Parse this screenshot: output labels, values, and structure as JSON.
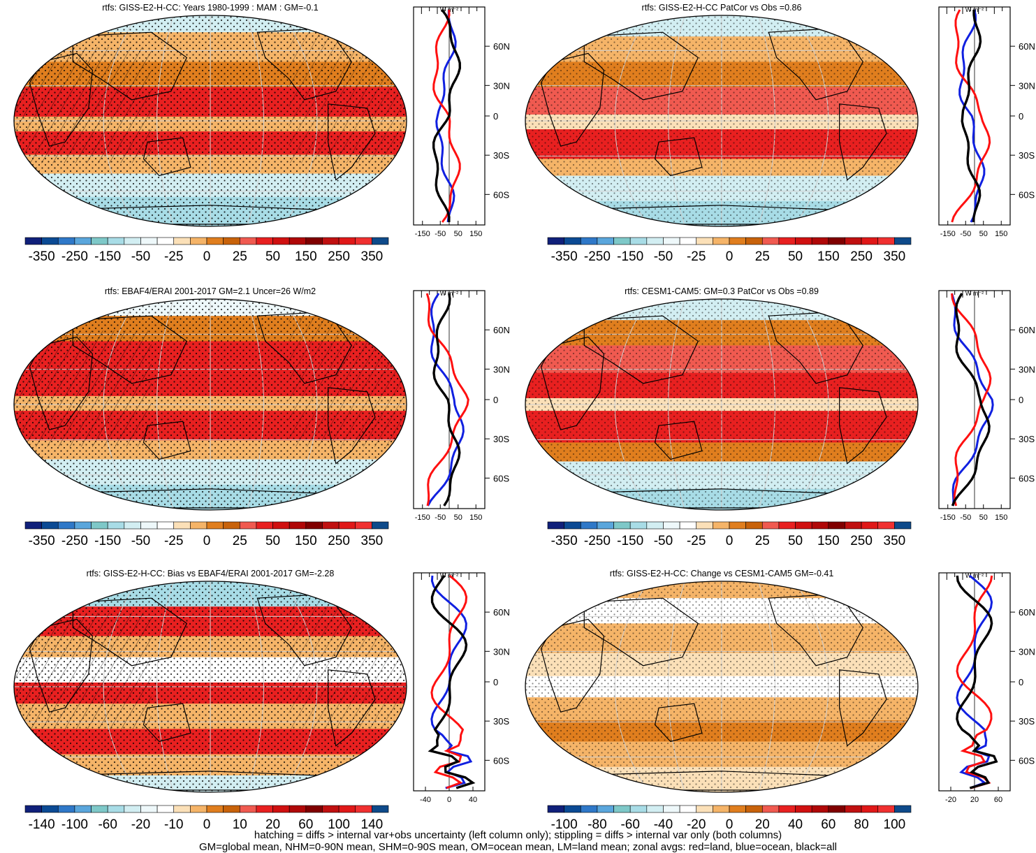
{
  "panels": [
    {
      "title": "rtfs: GISS-E2-H-CC: Years 1980-1999 : MAM : GM=-0.1",
      "colorbar_labels": [
        "-350",
        "-250",
        "-150",
        "-50",
        "-25",
        "0",
        "25",
        "50",
        "150",
        "250",
        "350"
      ],
      "profile_xticks": [
        "-150",
        "-50",
        "50",
        "150"
      ],
      "profile_units": "W m⁻²",
      "profile_lat_labels": [
        "60N",
        "30N",
        "0",
        "30S",
        "60S"
      ]
    },
    {
      "title": "rtfs: GISS-E2-H-CC PatCor vs Obs =0.86",
      "colorbar_labels": [
        "-350",
        "-250",
        "-150",
        "-50",
        "-25",
        "0",
        "25",
        "50",
        "150",
        "250",
        "350"
      ],
      "profile_xticks": [
        "-150",
        "-50",
        "50",
        "150"
      ],
      "profile_units": "W m⁻²",
      "profile_lat_labels": [
        "60N",
        "30N",
        "0",
        "30S",
        "60S"
      ]
    },
    {
      "title": "rtfs: EBAF4/ERAI 2001-2017 GM=2.1 Uncer=26 W/m2",
      "colorbar_labels": [
        "-350",
        "-250",
        "-150",
        "-50",
        "-25",
        "0",
        "25",
        "50",
        "150",
        "250",
        "350"
      ],
      "profile_xticks": [
        "-150",
        "-50",
        "50",
        "150"
      ],
      "profile_units": "W m⁻²",
      "profile_lat_labels": [
        "60N",
        "30N",
        "0",
        "30S",
        "60S"
      ]
    },
    {
      "title": "rtfs: CESM1-CAM5: GM=0.3 PatCor vs Obs =0.89",
      "colorbar_labels": [
        "-350",
        "-250",
        "-150",
        "-50",
        "-25",
        "0",
        "25",
        "50",
        "150",
        "250",
        "350"
      ],
      "profile_xticks": [
        "-150",
        "-50",
        "50",
        "150"
      ],
      "profile_units": "W m⁻²",
      "profile_lat_labels": [
        "60N",
        "30N",
        "0",
        "30S",
        "60S"
      ]
    },
    {
      "title": "rtfs: GISS-E2-H-CC: Bias vs EBAF4/ERAI 2001-2017 GM=-2.28",
      "colorbar_labels": [
        "-140",
        "-100",
        "-60",
        "-20",
        "-10",
        "0",
        "10",
        "20",
        "60",
        "100",
        "140"
      ],
      "profile_xticks": [
        "-40",
        "0",
        "40"
      ],
      "profile_units": "W m⁻²",
      "profile_lat_labels": [
        "60N",
        "30N",
        "0",
        "30S",
        "60S"
      ]
    },
    {
      "title": "rtfs: GISS-E2-H-CC: Change vs CESM1-CAM5 GM=-0.41",
      "colorbar_labels": [
        "-100",
        "-80",
        "-60",
        "-40",
        "-20",
        "0",
        "20",
        "40",
        "60",
        "80",
        "100"
      ],
      "profile_xticks": [
        "-20",
        "20",
        "60"
      ],
      "profile_units": "W m⁻²",
      "profile_lat_labels": [
        "60N",
        "30N",
        "0",
        "30S",
        "60S"
      ]
    }
  ],
  "colorbar_colors": [
    "#10207a",
    "#0b4a94",
    "#2f78c8",
    "#5aa6dc",
    "#7ec8c8",
    "#a8dce6",
    "#d2eef2",
    "#eef8fa",
    "#ffffff",
    "#fbe0b8",
    "#f5b468",
    "#e07e1e",
    "#c8620a",
    "#f05a50",
    "#e82020",
    "#d01010",
    "#b00808",
    "#800000",
    "#c01010",
    "#e01818",
    "#f03030",
    "#0e4a8a"
  ],
  "profile_colors": {
    "land": "#ff1010",
    "ocean": "#1020e0",
    "all": "#000000"
  },
  "footer_line1": "hatching = diffs > internal var+obs uncertainty (left column only); stippling = diffs > internal var only (both columns)",
  "footer_line2": "GM=global mean, NHM=0-90N mean, SHM=0-90S mean, OM=ocean mean, LM=land mean; zonal avgs: red=land, blue=ocean, black=all"
}
